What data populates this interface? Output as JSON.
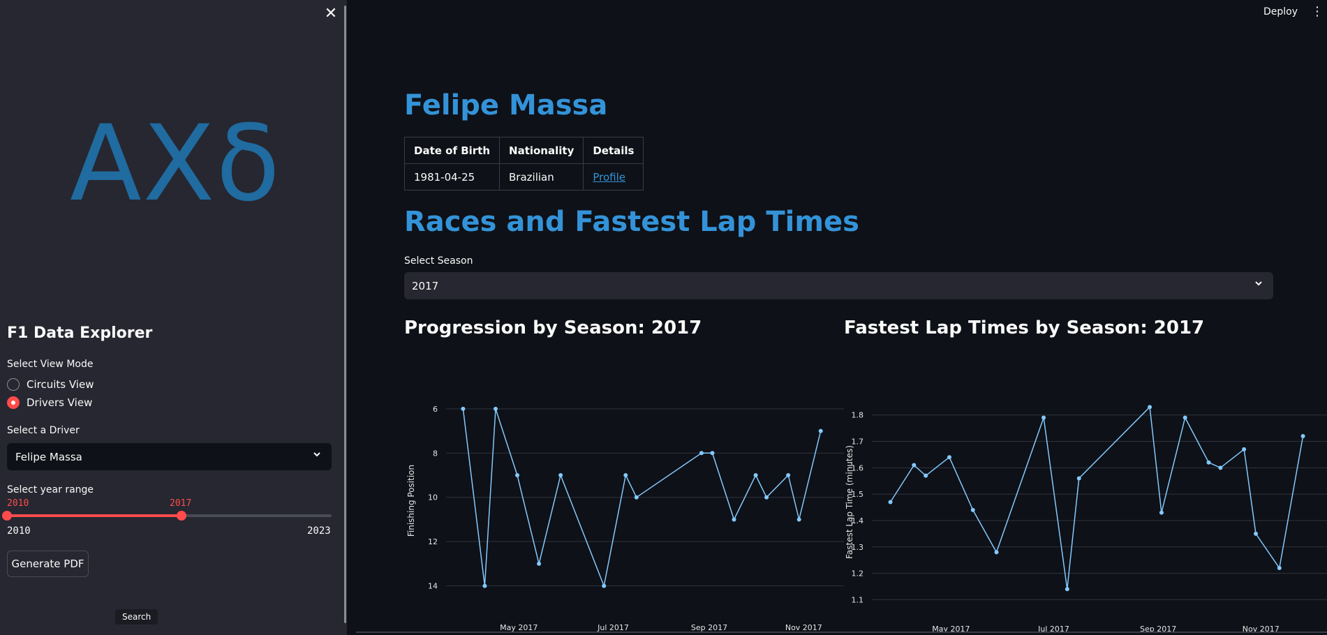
{
  "sidebar": {
    "close_icon": "close-icon",
    "logo_text": "ΑΧδ",
    "app_title": "F1 Data Explorer",
    "view_mode_label": "Select View Mode",
    "view_modes": [
      {
        "label": "Circuits View",
        "selected": false
      },
      {
        "label": "Drivers View",
        "selected": true
      }
    ],
    "driver_label": "Select a Driver",
    "driver_value": "Felipe Massa",
    "year_range_label": "Select year range",
    "year_range": {
      "min": "2010",
      "max": "2023",
      "from": "2010",
      "to": "2017"
    },
    "generate_pdf_label": "Generate PDF",
    "tooltip": "Search",
    "accent_color": "#ff4b4b"
  },
  "header": {
    "deploy_label": "Deploy",
    "menu_icon": "kebab-menu-icon"
  },
  "main": {
    "driver_name": "Felipe Massa",
    "info_table": {
      "headers": [
        "Date of Birth",
        "Nationality",
        "Details"
      ],
      "row": [
        "1981-04-25",
        "Brazilian",
        "Profile"
      ]
    },
    "section_title": "Races and Fastest Lap Times",
    "season_label": "Select Season",
    "season_value": "2017",
    "heading_color": "#3493d8"
  },
  "chart_data": [
    {
      "type": "line",
      "title": "Progression by Season: 2017",
      "xlabel": "",
      "ylabel": "Finishing Position",
      "x_tick_labels": [
        "May 2017",
        "Jul 2017",
        "Sep 2017",
        "Nov 2017"
      ],
      "y_ticks": [
        6,
        8,
        10,
        12,
        14
      ],
      "ylim": [
        14.8,
        5.5
      ],
      "y_inverted": true,
      "line_color": "#83c9ff",
      "grid": true,
      "points": [
        {
          "x": "2017-03-26",
          "y": 6
        },
        {
          "x": "2017-04-09",
          "y": 14
        },
        {
          "x": "2017-04-16",
          "y": 6
        },
        {
          "x": "2017-04-30",
          "y": 9
        },
        {
          "x": "2017-05-14",
          "y": 13
        },
        {
          "x": "2017-05-28",
          "y": 9
        },
        {
          "x": "2017-06-25",
          "y": 14
        },
        {
          "x": "2017-07-09",
          "y": 9
        },
        {
          "x": "2017-07-16",
          "y": 10
        },
        {
          "x": "2017-08-27",
          "y": 8
        },
        {
          "x": "2017-09-03",
          "y": 8
        },
        {
          "x": "2017-09-17",
          "y": 11
        },
        {
          "x": "2017-10-01",
          "y": 9
        },
        {
          "x": "2017-10-08",
          "y": 10
        },
        {
          "x": "2017-10-22",
          "y": 9
        },
        {
          "x": "2017-10-29",
          "y": 11
        },
        {
          "x": "2017-11-12",
          "y": 7
        }
      ]
    },
    {
      "type": "line",
      "title": "Fastest Lap Times by Season: 2017",
      "xlabel": "",
      "ylabel": "Fastest Lap Time (minutes)",
      "x_tick_labels": [
        "May 2017",
        "Jul 2017",
        "Sep 2017",
        "Nov 2017"
      ],
      "y_ticks": [
        1.1,
        1.2,
        1.3,
        1.4,
        1.5,
        1.6,
        1.7,
        1.8
      ],
      "ylim": [
        1.08,
        1.86
      ],
      "line_color": "#83c9ff",
      "grid": true,
      "points": [
        {
          "x": "2017-03-26",
          "y": 1.47
        },
        {
          "x": "2017-04-09",
          "y": 1.61
        },
        {
          "x": "2017-04-16",
          "y": 1.57
        },
        {
          "x": "2017-04-30",
          "y": 1.64
        },
        {
          "x": "2017-05-14",
          "y": 1.44
        },
        {
          "x": "2017-05-28",
          "y": 1.28
        },
        {
          "x": "2017-06-25",
          "y": 1.79
        },
        {
          "x": "2017-07-09",
          "y": 1.14
        },
        {
          "x": "2017-07-16",
          "y": 1.56
        },
        {
          "x": "2017-08-27",
          "y": 1.83
        },
        {
          "x": "2017-09-03",
          "y": 1.43
        },
        {
          "x": "2017-09-17",
          "y": 1.79
        },
        {
          "x": "2017-10-01",
          "y": 1.62
        },
        {
          "x": "2017-10-08",
          "y": 1.6
        },
        {
          "x": "2017-10-22",
          "y": 1.67
        },
        {
          "x": "2017-10-29",
          "y": 1.35
        },
        {
          "x": "2017-11-12",
          "y": 1.22
        },
        {
          "x": "2017-11-26",
          "y": 1.72
        }
      ]
    }
  ]
}
